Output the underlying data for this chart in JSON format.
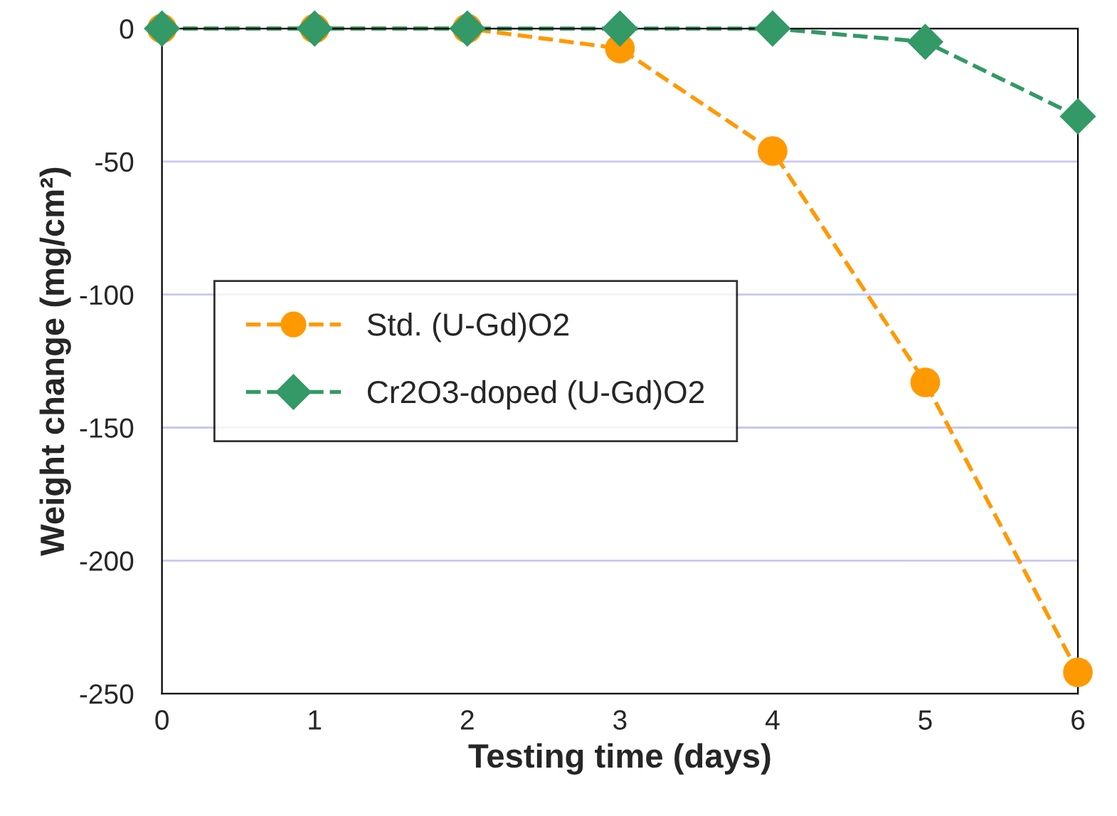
{
  "chart_data": {
    "type": "line",
    "xlabel": "Testing time (days)",
    "ylabel": "Weight change (mg/cm²)",
    "x": [
      0,
      1,
      2,
      3,
      4,
      5,
      6
    ],
    "series": [
      {
        "name": "Std. (U-Gd)O2",
        "color": "#ff9900",
        "marker": "circle",
        "values": [
          0,
          0,
          0,
          -7.5,
          -46,
          -133,
          -242
        ]
      },
      {
        "name": "Cr2O3-doped (U-Gd)O2",
        "color": "#339966",
        "marker": "diamond",
        "values": [
          0,
          0,
          0,
          0,
          0,
          -5,
          -33
        ]
      }
    ],
    "xlim": [
      0,
      6
    ],
    "xticks": [
      0,
      1,
      2,
      3,
      4,
      5,
      6
    ],
    "ylim": [
      -250,
      0
    ],
    "yticks": [
      -250,
      -200,
      -150,
      -100,
      -50,
      0
    ],
    "grid": "y",
    "legend": "center left",
    "line_style": "dashed"
  }
}
